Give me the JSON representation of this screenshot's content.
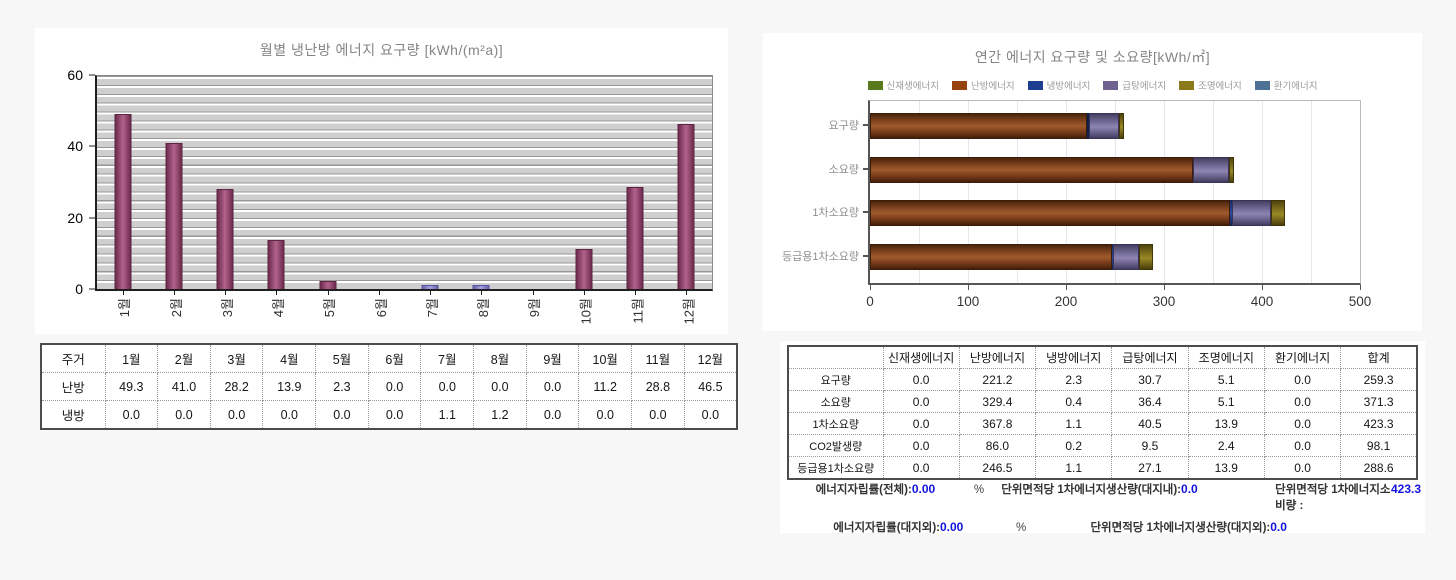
{
  "page": {
    "background": "#f7f7f7"
  },
  "left_panel": {
    "title": "월별 냉난방 에너지 요구량 [kWh/(m²a)]",
    "table": {
      "header": [
        "주거",
        "1월",
        "2월",
        "3월",
        "4월",
        "5월",
        "6월",
        "7월",
        "8월",
        "9월",
        "10월",
        "11월",
        "12월"
      ],
      "rows": [
        {
          "label": "난방",
          "values": [
            "49.3",
            "41.0",
            "28.2",
            "13.9",
            "2.3",
            "0.0",
            "0.0",
            "0.0",
            "0.0",
            "11.2",
            "28.8",
            "46.5"
          ]
        },
        {
          "label": "냉방",
          "values": [
            "0.0",
            "0.0",
            "0.0",
            "0.0",
            "0.0",
            "0.0",
            "1.1",
            "1.2",
            "0.0",
            "0.0",
            "0.0",
            "0.0"
          ]
        }
      ]
    }
  },
  "right_panel": {
    "title": "연간 에너지 요구량 및 소요량[kWh/㎡]",
    "legend": [
      {
        "label": "신재생에너지",
        "color": "#5a7a1e"
      },
      {
        "label": "난방에너지",
        "color": "#96430f"
      },
      {
        "label": "냉방에너지",
        "color": "#1d3e91"
      },
      {
        "label": "급탕에너지",
        "color": "#70628f"
      },
      {
        "label": "조명에너지",
        "color": "#8a7a1a"
      },
      {
        "label": "환기에너지",
        "color": "#4e7296"
      }
    ],
    "table": {
      "header": [
        "",
        "신재생에너지",
        "난방에너지",
        "냉방에너지",
        "급탕에너지",
        "조명에너지",
        "환기에너지",
        "합계"
      ],
      "rows": [
        {
          "label": "요구량",
          "values": [
            "0.0",
            "221.2",
            "2.3",
            "30.7",
            "5.1",
            "0.0",
            "259.3"
          ]
        },
        {
          "label": "소요량",
          "values": [
            "0.0",
            "329.4",
            "0.4",
            "36.4",
            "5.1",
            "0.0",
            "371.3"
          ]
        },
        {
          "label": "1차소요량",
          "values": [
            "0.0",
            "367.8",
            "1.1",
            "40.5",
            "13.9",
            "0.0",
            "423.3"
          ]
        },
        {
          "label": "CO2발생량",
          "values": [
            "0.0",
            "86.0",
            "0.2",
            "9.5",
            "2.4",
            "0.0",
            "98.1"
          ]
        },
        {
          "label": "등급용1차소요량",
          "values": [
            "0.0",
            "246.5",
            "1.1",
            "27.1",
            "13.9",
            "0.0",
            "288.6"
          ]
        }
      ]
    },
    "summary": {
      "value_color": "#1212e0",
      "rows": [
        [
          {
            "label": "에너지자립률(전체):",
            "value": "0.00",
            "unit": "%"
          },
          {
            "label": "단위면적당 1차에너지생산량(대지내):",
            "value": "0.0"
          },
          {
            "label": "단위면적당 1차에너지소비량 :",
            "value": "423.3"
          }
        ],
        [
          {
            "label": "에너지자립률(대지외):",
            "value": "0.00",
            "unit": "%"
          },
          {
            "label": "단위면적당 1차에너지생산량(대지외):",
            "value": "0.0"
          }
        ]
      ]
    }
  },
  "chart_data": [
    {
      "type": "bar",
      "title": "월별 냉난방 에너지 요구량 [kWh/(m²a)]",
      "categories": [
        "1월",
        "2월",
        "3월",
        "4월",
        "5월",
        "6월",
        "7월",
        "8월",
        "9월",
        "10월",
        "11월",
        "12월"
      ],
      "series": [
        {
          "name": "난방",
          "color": "#9c4a72",
          "border": "#5c2342",
          "grad": [
            "#6e2b4d 0%",
            "#b2638c 50%",
            "#6e2b4d 100%"
          ],
          "values": [
            49.3,
            41.0,
            28.2,
            13.9,
            2.3,
            0.0,
            0.0,
            0.0,
            0.0,
            11.2,
            28.8,
            46.5
          ]
        },
        {
          "name": "냉방",
          "color": "#8d8bd2",
          "border": "#55539c",
          "grad": [
            "#6664ae 0%",
            "#a5a3e0 50%",
            "#6664ae 100%"
          ],
          "values": [
            0.0,
            0.0,
            0.0,
            0.0,
            0.0,
            0.0,
            1.1,
            1.2,
            0.0,
            0.0,
            0.0,
            0.0
          ]
        }
      ],
      "ylim": [
        0,
        60
      ],
      "yticks": [
        0,
        20,
        40,
        60
      ],
      "grid": "horizontal-stripes",
      "legend_position": "none"
    },
    {
      "type": "bar",
      "orientation": "horizontal",
      "stacked": true,
      "title": "연간 에너지 요구량 및 소요량[kWh/㎡]",
      "categories": [
        "요구량",
        "소요량",
        "1차소요량",
        "등급용1차소요량"
      ],
      "series": [
        {
          "name": "신재생에너지",
          "color": "#5a7a1e",
          "border": "#33470f",
          "grad": [
            "#3c5212 0%",
            "#6d9226 50%",
            "#3c5212 100%"
          ],
          "values": [
            0,
            0,
            0,
            0
          ]
        },
        {
          "name": "난방에너지",
          "color": "#8a4a22",
          "border": "#3a1c08",
          "grad": [
            "#4a240d 0%",
            "#8a4a22 35%",
            "#a05a2c 50%",
            "#6e3616 80%",
            "#431f0a 100%"
          ],
          "values": [
            221.2,
            329.4,
            367.8,
            246.5
          ]
        },
        {
          "name": "냉방에너지",
          "color": "#1d3e91",
          "border": "#0f1f4e",
          "grad": [
            "#132a66 0%",
            "#2a4aa0 50%",
            "#122456 100%"
          ],
          "values": [
            2.3,
            0.4,
            1.1,
            1.1
          ]
        },
        {
          "name": "급탕에너지",
          "color": "#776d9c",
          "border": "#393354",
          "grad": [
            "#453e63 0%",
            "#827aa8 45%",
            "#8d84b2 55%",
            "#433c60 100%"
          ],
          "values": [
            30.7,
            36.4,
            40.5,
            27.1
          ]
        },
        {
          "name": "조명에너지",
          "color": "#857419",
          "border": "#3f360a",
          "grad": [
            "#4f430e 0%",
            "#8d7c20 45%",
            "#9a8826 55%",
            "#4a3f0c 100%"
          ],
          "values": [
            5.1,
            5.1,
            13.9,
            13.9
          ]
        },
        {
          "name": "환기에너지",
          "color": "#4e7296",
          "border": "#2c4359",
          "grad": [
            "#35506b 0%",
            "#5d83a8 50%",
            "#35506b 100%"
          ],
          "values": [
            0,
            0,
            0,
            0
          ]
        }
      ],
      "xlim": [
        0,
        500
      ],
      "xticks": [
        0,
        100,
        200,
        300,
        400,
        500
      ],
      "grid_step": 50,
      "legend_position": "top"
    }
  ]
}
